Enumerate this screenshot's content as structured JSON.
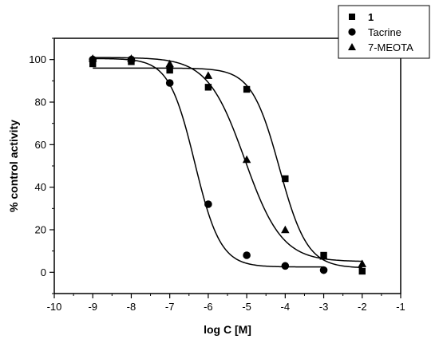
{
  "chart_data": {
    "type": "scatter",
    "xlabel": "log C [M]",
    "ylabel": "% control activity",
    "xlim": [
      -10,
      -1
    ],
    "ylim": [
      -10,
      110
    ],
    "x_ticks": [
      "-10",
      "-9",
      "-8",
      "-7",
      "-6",
      "-5",
      "-4",
      "-3",
      "-2",
      "-1"
    ],
    "y_ticks": [
      "0",
      "20",
      "40",
      "60",
      "80",
      "100"
    ],
    "legend_position": "top-right",
    "series": [
      {
        "name": "1",
        "marker": "square",
        "x": [
          -9,
          -8,
          -7,
          -6,
          -5,
          -4,
          -3,
          -2
        ],
        "y": [
          98,
          99,
          95,
          87,
          86,
          44,
          8,
          0.5
        ],
        "fit": {
          "top": 96,
          "bottom": 2,
          "logIC50": -4.15,
          "hill": 1.2
        }
      },
      {
        "name": "Tacrine",
        "marker": "circle",
        "x": [
          -9,
          -8,
          -7,
          -6,
          -5,
          -4,
          -3
        ],
        "y": [
          100,
          100,
          89,
          32,
          8,
          3,
          1
        ],
        "fit": {
          "top": 100.5,
          "bottom": 2.5,
          "logIC50": -6.35,
          "hill": 1.3
        }
      },
      {
        "name": "7-MEOTA",
        "marker": "triangle",
        "x": [
          -9,
          -8,
          -7,
          -6,
          -5,
          -4,
          -3,
          -2
        ],
        "y": [
          100.5,
          100.5,
          98,
          92.5,
          53,
          20,
          7.5,
          4
        ],
        "fit": {
          "top": 101,
          "bottom": 5,
          "logIC50": -5.05,
          "hill": 0.9
        }
      }
    ]
  }
}
